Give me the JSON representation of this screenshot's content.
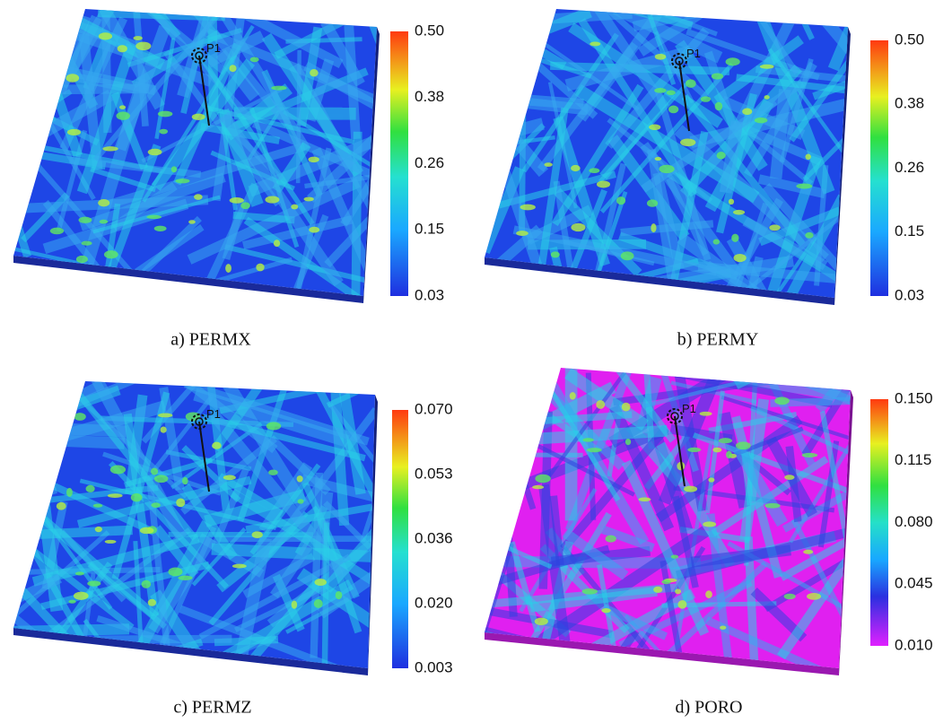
{
  "panels": [
    {
      "caption": "a) PERMX",
      "well": "P1",
      "colorbar_ticks": [
        "0.50",
        "0.38",
        "0.26",
        "0.15",
        "0.03"
      ],
      "palette": "jet"
    },
    {
      "caption": "b) PERMY",
      "well": "P1",
      "colorbar_ticks": [
        "0.50",
        "0.38",
        "0.26",
        "0.15",
        "0.03"
      ],
      "palette": "jet"
    },
    {
      "caption": "c) PERMZ",
      "well": "P1",
      "colorbar_ticks": [
        "0.070",
        "0.053",
        "0.036",
        "0.020",
        "0.003"
      ],
      "palette": "jet"
    },
    {
      "caption": "d) PORO",
      "well": "P1",
      "colorbar_ticks": [
        "0.150",
        "0.115",
        "0.080",
        "0.045",
        "0.010"
      ],
      "palette": "poro"
    }
  ]
}
